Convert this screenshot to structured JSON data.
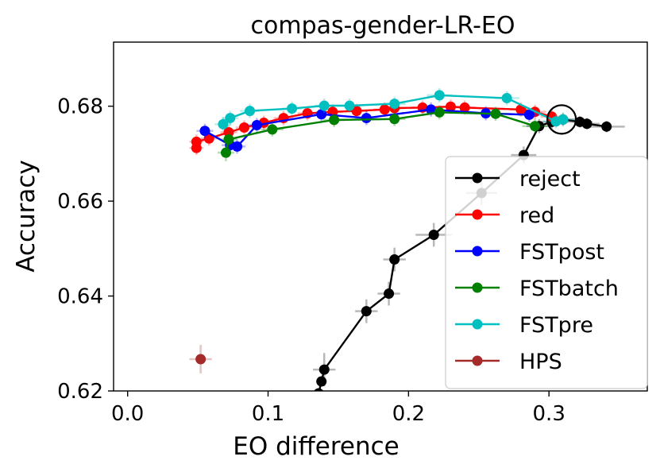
{
  "chart_data": {
    "type": "line",
    "title": "compas-gender-LR-EO",
    "xlabel": "EO difference",
    "ylabel": "Accuracy",
    "xlim": [
      -0.01,
      0.37
    ],
    "ylim": [
      0.62,
      0.6935
    ],
    "xticks": [
      0.0,
      0.1,
      0.2,
      0.3
    ],
    "xtick_labels": [
      "0.0",
      "0.1",
      "0.2",
      "0.3"
    ],
    "yticks": [
      0.62,
      0.64,
      0.66,
      0.68
    ],
    "ytick_labels": [
      "0.62",
      "0.64",
      "0.66",
      "0.68"
    ],
    "grid": false,
    "legend_position": "lower-right",
    "highlight_circle": {
      "x": 0.309,
      "y": 0.6772
    },
    "series": [
      {
        "name": "reject",
        "color": "#000000",
        "points": [
          {
            "x": 0.341,
            "y": 0.6757,
            "xerr": 0.013,
            "yerr": 0.0012
          },
          {
            "x": 0.327,
            "y": 0.6763,
            "xerr": 0.009,
            "yerr": 0.0012
          },
          {
            "x": 0.322,
            "y": 0.6767,
            "xerr": 0.009,
            "yerr": 0.0012
          },
          {
            "x": 0.31,
            "y": 0.6772,
            "xerr": 0.009,
            "yerr": 0.0013
          },
          {
            "x": 0.302,
            "y": 0.6767,
            "xerr": 0.008,
            "yerr": 0.0014
          },
          {
            "x": 0.293,
            "y": 0.6758,
            "xerr": 0.009,
            "yerr": 0.0015
          },
          {
            "x": 0.282,
            "y": 0.6697,
            "xerr": 0.009,
            "yerr": 0.0018
          },
          {
            "x": 0.252,
            "y": 0.6617,
            "xerr": 0.011,
            "yerr": 0.0025
          },
          {
            "x": 0.218,
            "y": 0.6529,
            "xerr": 0.013,
            "yerr": 0.0025
          },
          {
            "x": 0.19,
            "y": 0.6477,
            "xerr": 0.008,
            "yerr": 0.0025
          },
          {
            "x": 0.186,
            "y": 0.6405,
            "xerr": 0.008,
            "yerr": 0.0025
          },
          {
            "x": 0.17,
            "y": 0.6368,
            "xerr": 0.008,
            "yerr": 0.0025
          },
          {
            "x": 0.14,
            "y": 0.6245,
            "xerr": 0.008,
            "yerr": 0.0035
          },
          {
            "x": 0.138,
            "y": 0.622,
            "xerr": 0.0,
            "yerr": 0.0
          },
          {
            "x": 0.136,
            "y": 0.6195,
            "xerr": 0.0,
            "yerr": 0.0
          }
        ]
      },
      {
        "name": "red",
        "color": "#ff0000",
        "points": [
          {
            "x": 0.049,
            "y": 0.6712,
            "xerr": 0.005,
            "yerr": 0.0015
          },
          {
            "x": 0.049,
            "y": 0.6725,
            "xerr": 0.005,
            "yerr": 0.0015
          },
          {
            "x": 0.058,
            "y": 0.6732,
            "xerr": 0.006,
            "yerr": 0.0015
          },
          {
            "x": 0.072,
            "y": 0.6745,
            "xerr": 0.006,
            "yerr": 0.0015
          },
          {
            "x": 0.083,
            "y": 0.6755,
            "xerr": 0.006,
            "yerr": 0.0015
          },
          {
            "x": 0.097,
            "y": 0.6765,
            "xerr": 0.006,
            "yerr": 0.0015
          },
          {
            "x": 0.111,
            "y": 0.6775,
            "xerr": 0.007,
            "yerr": 0.0015
          },
          {
            "x": 0.128,
            "y": 0.6785,
            "xerr": 0.007,
            "yerr": 0.0015
          },
          {
            "x": 0.146,
            "y": 0.6788,
            "xerr": 0.007,
            "yerr": 0.0015
          },
          {
            "x": 0.163,
            "y": 0.679,
            "xerr": 0.008,
            "yerr": 0.0015
          },
          {
            "x": 0.183,
            "y": 0.6793,
            "xerr": 0.008,
            "yerr": 0.0015
          },
          {
            "x": 0.19,
            "y": 0.6796,
            "xerr": 0.008,
            "yerr": 0.0015
          },
          {
            "x": 0.21,
            "y": 0.6797,
            "xerr": 0.008,
            "yerr": 0.0015
          },
          {
            "x": 0.23,
            "y": 0.6799,
            "xerr": 0.008,
            "yerr": 0.0015
          },
          {
            "x": 0.24,
            "y": 0.6797,
            "xerr": 0.008,
            "yerr": 0.0015
          },
          {
            "x": 0.28,
            "y": 0.6793,
            "xerr": 0.008,
            "yerr": 0.0015
          },
          {
            "x": 0.29,
            "y": 0.6788,
            "xerr": 0.008,
            "yerr": 0.0015
          },
          {
            "x": 0.302,
            "y": 0.6778,
            "xerr": 0.008,
            "yerr": 0.0015
          }
        ]
      },
      {
        "name": "FSTpost",
        "color": "#0000ff",
        "points": [
          {
            "x": 0.055,
            "y": 0.6748,
            "xerr": 0.006,
            "yerr": 0.0015
          },
          {
            "x": 0.073,
            "y": 0.6718,
            "xerr": 0.006,
            "yerr": 0.0015
          },
          {
            "x": 0.078,
            "y": 0.6715,
            "xerr": 0.006,
            "yerr": 0.0015
          },
          {
            "x": 0.092,
            "y": 0.676,
            "xerr": 0.007,
            "yerr": 0.0015
          },
          {
            "x": 0.138,
            "y": 0.6783,
            "xerr": 0.007,
            "yerr": 0.0015
          },
          {
            "x": 0.17,
            "y": 0.6775,
            "xerr": 0.008,
            "yerr": 0.0015
          },
          {
            "x": 0.216,
            "y": 0.6793,
            "xerr": 0.008,
            "yerr": 0.0015
          },
          {
            "x": 0.255,
            "y": 0.6785,
            "xerr": 0.008,
            "yerr": 0.0015
          },
          {
            "x": 0.286,
            "y": 0.6782,
            "xerr": 0.008,
            "yerr": 0.0015
          }
        ]
      },
      {
        "name": "FSTbatch",
        "color": "#008000",
        "points": [
          {
            "x": 0.07,
            "y": 0.6702,
            "xerr": 0.006,
            "yerr": 0.0018
          },
          {
            "x": 0.072,
            "y": 0.673,
            "xerr": 0.006,
            "yerr": 0.0018
          },
          {
            "x": 0.103,
            "y": 0.6751,
            "xerr": 0.008,
            "yerr": 0.0015
          },
          {
            "x": 0.147,
            "y": 0.6771,
            "xerr": 0.008,
            "yerr": 0.0015
          },
          {
            "x": 0.19,
            "y": 0.6773,
            "xerr": 0.008,
            "yerr": 0.0015
          },
          {
            "x": 0.222,
            "y": 0.6787,
            "xerr": 0.009,
            "yerr": 0.0015
          },
          {
            "x": 0.262,
            "y": 0.6784,
            "xerr": 0.009,
            "yerr": 0.0015
          },
          {
            "x": 0.29,
            "y": 0.6758,
            "xerr": 0.009,
            "yerr": 0.0015
          }
        ]
      },
      {
        "name": "FSTpre",
        "color": "#00bfbf",
        "points": [
          {
            "x": 0.068,
            "y": 0.6762,
            "xerr": 0.006,
            "yerr": 0.0015
          },
          {
            "x": 0.073,
            "y": 0.6775,
            "xerr": 0.006,
            "yerr": 0.0015
          },
          {
            "x": 0.087,
            "y": 0.679,
            "xerr": 0.007,
            "yerr": 0.0015
          },
          {
            "x": 0.117,
            "y": 0.6795,
            "xerr": 0.007,
            "yerr": 0.0015
          },
          {
            "x": 0.14,
            "y": 0.6801,
            "xerr": 0.007,
            "yerr": 0.0015
          },
          {
            "x": 0.158,
            "y": 0.6801,
            "xerr": 0.008,
            "yerr": 0.0015
          },
          {
            "x": 0.19,
            "y": 0.6805,
            "xerr": 0.008,
            "yerr": 0.0015
          },
          {
            "x": 0.222,
            "y": 0.6823,
            "xerr": 0.009,
            "yerr": 0.0015
          },
          {
            "x": 0.27,
            "y": 0.6817,
            "xerr": 0.009,
            "yerr": 0.0015
          },
          {
            "x": 0.305,
            "y": 0.6768,
            "xerr": 0.009,
            "yerr": 0.0015
          },
          {
            "x": 0.31,
            "y": 0.6772,
            "xerr": 0.009,
            "yerr": 0.0015
          }
        ]
      },
      {
        "name": "HPS",
        "color": "#a52a2a",
        "points": [
          {
            "x": 0.052,
            "y": 0.6267,
            "xerr": 0.008,
            "yerr": 0.003
          }
        ]
      }
    ]
  }
}
